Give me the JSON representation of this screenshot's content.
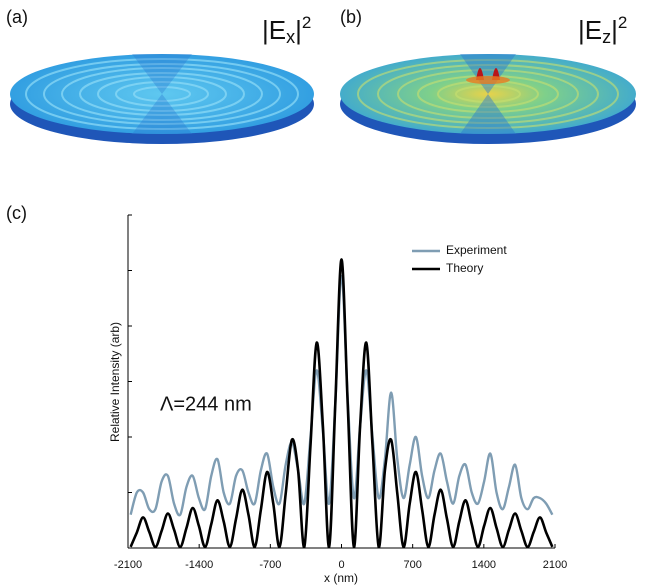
{
  "panels": [
    {
      "label": "(a)",
      "field_prefix": "|E",
      "field_sub": "x",
      "field_mid": "|",
      "field_sup": "2"
    },
    {
      "label": "(b)",
      "field_prefix": "|E",
      "field_sub": "z",
      "field_mid": "|",
      "field_sup": "2"
    }
  ],
  "chart_data": {
    "type": "line",
    "label": "(c)",
    "annotation": "Λ=244 nm",
    "x_label": "x (nm)",
    "y_label": "Relative Intensity (arb)",
    "x": [
      -2074,
      -2013,
      -1952,
      -1891,
      -1830,
      -1769,
      -1708,
      -1647,
      -1586,
      -1525,
      -1464,
      -1403,
      -1342,
      -1281,
      -1220,
      -1159,
      -1098,
      -1037,
      -976,
      -915,
      -854,
      -793,
      -732,
      -671,
      -610,
      -549,
      -488,
      -427,
      -366,
      -305,
      -244,
      -183,
      -122,
      -61,
      0,
      61,
      122,
      183,
      244,
      305,
      366,
      427,
      488,
      549,
      610,
      671,
      732,
      793,
      854,
      915,
      976,
      1037,
      1098,
      1159,
      1220,
      1281,
      1342,
      1403,
      1464,
      1525,
      1586,
      1647,
      1708,
      1769,
      1830,
      1891,
      1952,
      2013,
      2074
    ],
    "series": [
      {
        "name": "Experiment",
        "color": "#7f9db3",
        "values": [
          0.6,
          1.0,
          1.0,
          0.7,
          0.7,
          1.2,
          1.3,
          0.8,
          0.6,
          1.1,
          1.3,
          0.9,
          0.7,
          1.3,
          1.6,
          1.0,
          0.8,
          1.3,
          1.4,
          1.0,
          0.8,
          1.4,
          1.7,
          1.1,
          0.8,
          1.5,
          1.9,
          1.4,
          0.8,
          2.0,
          3.2,
          2.1,
          0.8,
          2.6,
          4.9,
          2.7,
          0.9,
          2.2,
          3.2,
          2.0,
          0.9,
          1.6,
          2.8,
          1.6,
          0.9,
          1.5,
          2.0,
          1.3,
          0.9,
          1.4,
          1.7,
          1.2,
          0.8,
          1.3,
          1.5,
          1.0,
          0.8,
          1.2,
          1.7,
          1.0,
          0.7,
          1.1,
          1.5,
          0.9,
          0.7,
          0.9,
          0.9,
          0.8,
          0.6
        ]
      },
      {
        "name": "Theory",
        "color": "#000000",
        "values": [
          0.02,
          0.28,
          0.55,
          0.29,
          0.02,
          0.31,
          0.62,
          0.33,
          0.02,
          0.36,
          0.72,
          0.4,
          0.02,
          0.43,
          0.86,
          0.48,
          0.02,
          0.53,
          1.05,
          0.6,
          0.02,
          0.69,
          1.37,
          0.8,
          0.02,
          0.98,
          1.95,
          1.4,
          0.02,
          1.85,
          3.7,
          2.2,
          0.02,
          2.6,
          5.2,
          2.6,
          0.02,
          2.2,
          3.7,
          1.85,
          0.02,
          1.4,
          1.95,
          0.98,
          0.02,
          0.8,
          1.37,
          0.69,
          0.02,
          0.6,
          1.05,
          0.53,
          0.02,
          0.48,
          0.86,
          0.43,
          0.02,
          0.4,
          0.72,
          0.36,
          0.02,
          0.33,
          0.62,
          0.31,
          0.02,
          0.29,
          0.55,
          0.28,
          0.02
        ]
      }
    ],
    "xlim": [
      -2100,
      2100
    ],
    "xticks": [
      -2100,
      -1400,
      -700,
      0,
      700,
      1400,
      2100
    ],
    "ylim": [
      0,
      6
    ],
    "yticks": [
      0,
      1,
      2,
      3,
      4,
      5,
      6
    ],
    "legend": "upper right"
  }
}
